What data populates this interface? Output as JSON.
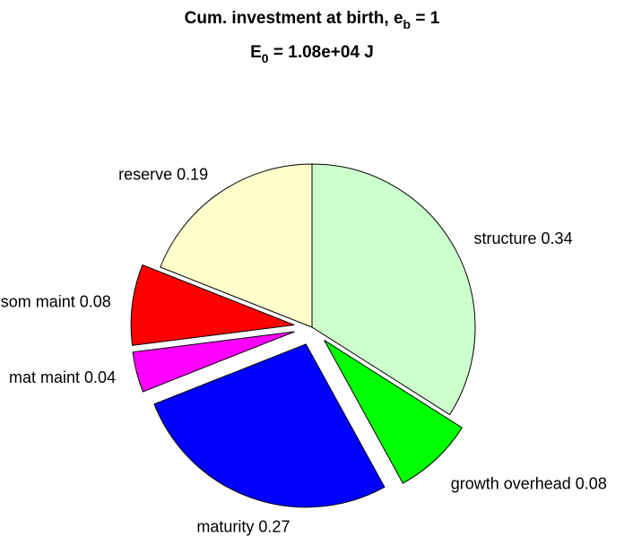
{
  "chart_data": {
    "type": "pie",
    "title": {
      "text": "Cum. investment at birth, e",
      "sub": "b",
      "tail": " = 1"
    },
    "subtitle": {
      "text": "E",
      "sub": "0",
      "tail": " = 1.08e+04 J"
    },
    "categories": [
      "structure",
      "growth overhead",
      "maturity",
      "mat maint",
      "som maint",
      "reserve"
    ],
    "values": [
      0.34,
      0.08,
      0.27,
      0.04,
      0.08,
      0.19
    ],
    "colors": [
      "#ccffcc",
      "#00ff00",
      "#0000ff",
      "#ff00ff",
      "#ff0000",
      "#ffffcc"
    ],
    "explode": [
      false,
      true,
      true,
      true,
      true,
      false
    ]
  }
}
